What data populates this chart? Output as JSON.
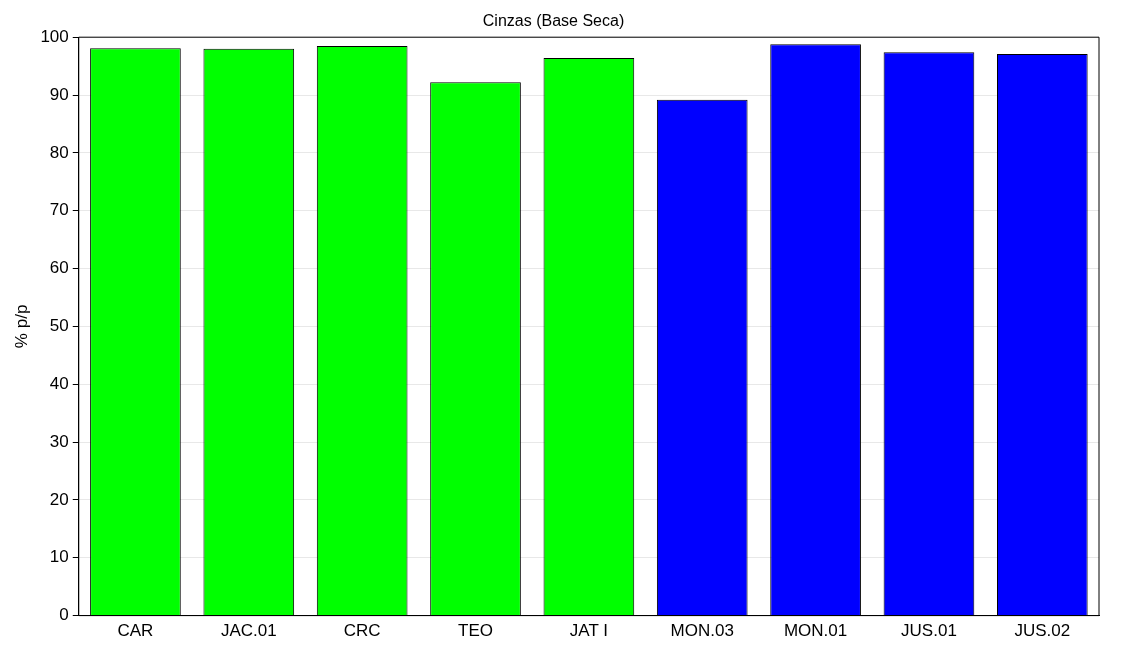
{
  "chart_data": {
    "type": "bar",
    "title": "Cinzas (Base Seca)",
    "ylabel": "% p/p",
    "categories": [
      "CAR",
      "JAC.01",
      "CRC",
      "TEO",
      "JAT I",
      "MON.03",
      "MON.01",
      "JUS.01",
      "JUS.02"
    ],
    "values": [
      98.1,
      98.0,
      98.5,
      92.2,
      96.4,
      89.2,
      98.8,
      97.4,
      97.1
    ],
    "colors": [
      "#00ff00",
      "#00ff00",
      "#00ff00",
      "#00ff00",
      "#00ff00",
      "#0000ff",
      "#0000ff",
      "#0000ff",
      "#0000ff"
    ],
    "ylim": [
      0,
      100
    ],
    "yticks": [
      0,
      10,
      20,
      30,
      40,
      50,
      60,
      70,
      80,
      90,
      100
    ],
    "grid": "y",
    "legend": false
  }
}
